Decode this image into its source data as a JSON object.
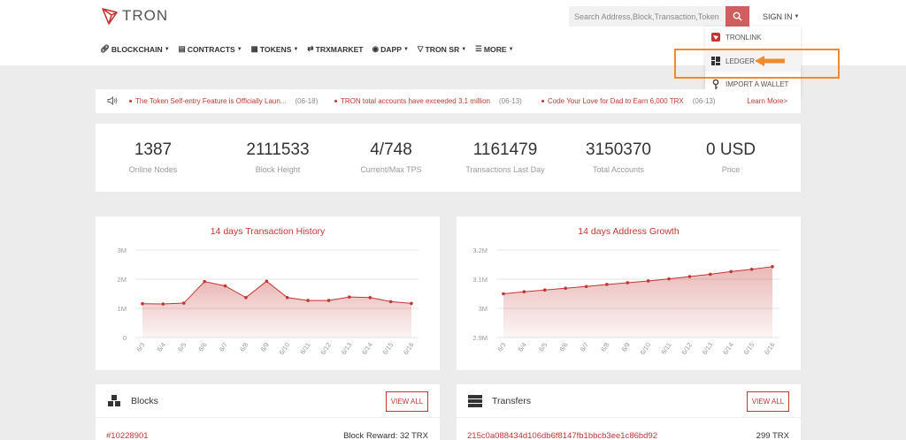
{
  "header": {
    "logo_text": "TRON",
    "search_placeholder": "Search Address,Block,Transaction,Token",
    "signin_label": "SIGN IN"
  },
  "nav": [
    {
      "label": "BLOCKCHAIN",
      "icon": "link-icon"
    },
    {
      "label": "CONTRACTS",
      "icon": "document-icon"
    },
    {
      "label": "TOKENS",
      "icon": "tokens-icon"
    },
    {
      "label": "TRXMARKET",
      "icon": "exchange-icon"
    },
    {
      "label": "DAPP",
      "icon": "gamepad-icon"
    },
    {
      "label": "TRON SR",
      "icon": "tron-icon"
    },
    {
      "label": "MORE",
      "icon": "list-icon"
    }
  ],
  "signin_menu": [
    {
      "label": "TRONLINK",
      "icon": "tronlink-icon"
    },
    {
      "label": "LEDGER",
      "icon": "ledger-icon"
    },
    {
      "label": "IMPORT A WALLET",
      "icon": "key-icon"
    }
  ],
  "ticker": {
    "items": [
      {
        "text": "The Token Self-entry Feature is Officially Laun...",
        "date": "(06-18)"
      },
      {
        "text": "TRON total accounts have exceeded 3.1 million",
        "date": "(06-13)"
      },
      {
        "text": "Code Your Love for Dad to Earn 6,000 TRX",
        "date": "(06-13)"
      }
    ],
    "learn_more": "Learn More>"
  },
  "stats": [
    {
      "value": "1387",
      "label": "Online Nodes"
    },
    {
      "value": "2111533",
      "label": "Block Height"
    },
    {
      "value": "4/748",
      "label": "Current/Max TPS"
    },
    {
      "value": "1161479",
      "label": "Transactions Last Day"
    },
    {
      "value": "3150370",
      "label": "Total Accounts"
    },
    {
      "value": "0 USD",
      "label": "Price"
    }
  ],
  "chart_data": [
    {
      "type": "area",
      "title": "14 days Transaction History",
      "categories": [
        "6/3",
        "6/4",
        "6/5",
        "6/6",
        "6/7",
        "6/8",
        "6/9",
        "6/10",
        "6/11",
        "6/12",
        "6/13",
        "6/14",
        "6/15",
        "6/16"
      ],
      "values": [
        1160000,
        1150000,
        1180000,
        1920000,
        1770000,
        1370000,
        1930000,
        1370000,
        1270000,
        1270000,
        1390000,
        1370000,
        1230000,
        1170000
      ],
      "yticks": [
        "0",
        "1M",
        "2M",
        "3M"
      ],
      "ylim": [
        0,
        3000000
      ],
      "color": "#c23631"
    },
    {
      "type": "area",
      "title": "14 days Address Growth",
      "categories": [
        "6/3",
        "6/4",
        "6/5",
        "6/6",
        "6/7",
        "6/8",
        "6/9",
        "6/10",
        "6/11",
        "6/12",
        "6/13",
        "6/14",
        "6/15",
        "6/16"
      ],
      "values": [
        3050000,
        3057000,
        3063000,
        3069000,
        3075000,
        3082000,
        3088000,
        3094000,
        3101000,
        3109000,
        3117000,
        3126000,
        3134000,
        3143000
      ],
      "yticks": [
        "2.9M",
        "3M",
        "3.1M",
        "3.2M"
      ],
      "ylim": [
        2900000,
        3200000
      ],
      "color": "#c23631"
    }
  ],
  "blocks_card": {
    "title": "Blocks",
    "view_all": "VIEW ALL",
    "row_left": "#10228901",
    "row_right": "Block Reward: 32 TRX"
  },
  "transfers_card": {
    "title": "Transfers",
    "view_all": "VIEW ALL",
    "row_left": "215c0a088434d106db6f8147fb1bbcb3ee1c86bd92",
    "row_right": "299 TRX"
  },
  "colors": {
    "accent": "#c23631",
    "highlight": "#f08a2a"
  }
}
